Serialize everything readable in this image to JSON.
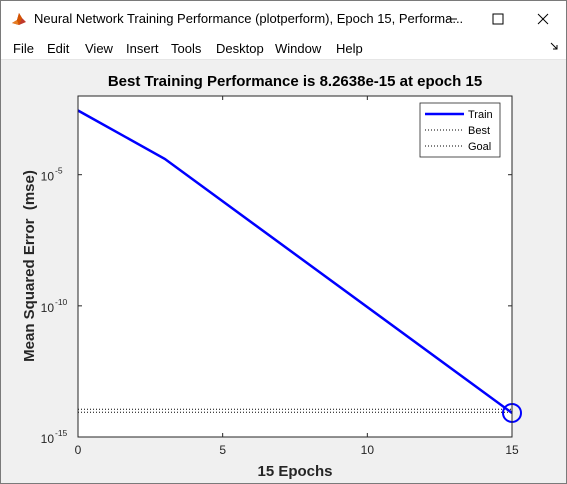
{
  "window": {
    "title": "Neural Network Training Performance (plotperform), Epoch 15, Performa...",
    "icon": "matlab-icon",
    "controls": [
      "minimize-icon",
      "maximize-icon",
      "close-icon"
    ]
  },
  "menubar": {
    "items": [
      "File",
      "Edit",
      "View",
      "Insert",
      "Tools",
      "Desktop",
      "Window",
      "Help"
    ]
  },
  "colors": {
    "train": "#0000ff",
    "best": "#000000",
    "goal": "#000000",
    "marker": "#0000ff"
  },
  "chart_data": {
    "type": "line",
    "title": "Best Training Performance is 8.2638e-15 at epoch 15",
    "xlabel": "15 Epochs",
    "ylabel": "Mean Squared Error  (mse)",
    "y_scale": "log",
    "xlim": [
      0,
      15
    ],
    "ylim": [
      1e-15,
      0.01
    ],
    "x_ticks": [
      0,
      5,
      10,
      15
    ],
    "y_ticks": [
      {
        "value": 1e-05,
        "base": "10",
        "exp": "-5"
      },
      {
        "value": 1e-10,
        "base": "10",
        "exp": "-10"
      },
      {
        "value": 1e-15,
        "base": "10",
        "exp": "-15"
      }
    ],
    "grid": false,
    "legend_position": "top-right",
    "series": [
      {
        "name": "Train",
        "style": "solid",
        "x": [
          0,
          3,
          15
        ],
        "y": [
          0.0028,
          4e-05,
          8.2638e-15
        ]
      },
      {
        "name": "Best",
        "style": "dotted",
        "x": [
          0,
          15
        ],
        "y": [
          1e-14,
          1e-14
        ],
        "vertical_x": 15
      },
      {
        "name": "Goal",
        "style": "dotted",
        "x": [
          0,
          15
        ],
        "y": [
          1e-14,
          1e-14
        ]
      }
    ],
    "best_point": {
      "x": 15,
      "y": 8.2638e-15
    }
  }
}
